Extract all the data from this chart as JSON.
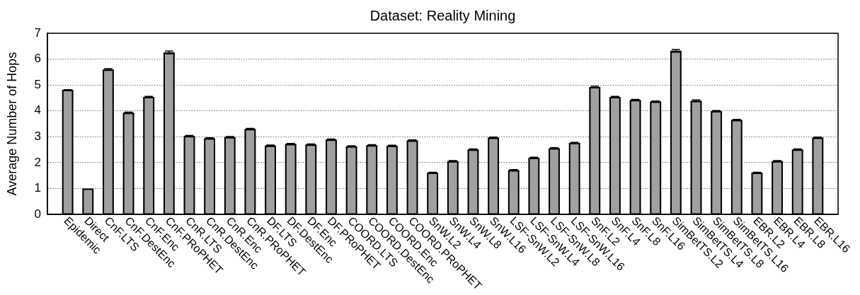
{
  "chart_data": {
    "type": "bar",
    "title": "Dataset: Reality Mining",
    "ylabel": "Average Number of Hops",
    "categories": [
      "Epidemic",
      "Direct",
      "CnF.LTS",
      "CnF.DestEnc",
      "CnF.Enc",
      "CnF.PRoPHET",
      "CnR.LTS",
      "CnR.DestEnc",
      "CnR.Enc",
      "CnR.PRoPHET",
      "DF.LTS",
      "DF.DestEnc",
      "DF.Enc",
      "DF.PRoPHET",
      "COORD.LTS",
      "COORD.DestEnc",
      "COORD.Enc",
      "COORD.PRoPHET",
      "SnW.L2",
      "SnW.L4",
      "SnW.L8",
      "SnW.L16",
      "LSF-SnW.L2",
      "LSF-SnW.L4",
      "LSF-SnW.L8",
      "LSF-SnW.L16",
      "SnF.L2",
      "SnF.L4",
      "SnF.L8",
      "SnF.L16",
      "SimBetTS.L2",
      "SimBetTS.L4",
      "SimBetTS.L8",
      "SimBetTS.L16",
      "EBR.L2",
      "EBR.L4",
      "EBR.L8",
      "EBR.L16"
    ],
    "values": [
      4.81,
      1,
      5.6,
      3.93,
      4.54,
      6.26,
      3.03,
      2.94,
      2.99,
      3.3,
      2.66,
      2.72,
      2.7,
      2.89,
      2.63,
      2.67,
      2.65,
      2.86,
      1.61,
      2.06,
      2.51,
      2.97,
      1.71,
      2.19,
      2.56,
      2.76,
      4.92,
      4.54,
      4.42,
      4.36,
      6.32,
      4.39,
      3.99,
      3.65,
      1.61,
      2.06,
      2.51,
      2.97
    ],
    "errors": [
      0.01,
      null,
      0.03,
      0.02,
      0.02,
      0.05,
      0.02,
      0.02,
      0.02,
      0.02,
      0.02,
      0.02,
      0.02,
      0.02,
      0.02,
      0.02,
      0.02,
      0.02,
      0.02,
      0.02,
      0.02,
      0.02,
      0.02,
      0.02,
      0.02,
      0.02,
      0.03,
      0.02,
      0.02,
      0.02,
      0.05,
      0.03,
      0.02,
      0.02,
      0.02,
      0.02,
      0.02,
      0.02
    ],
    "color": "#a0a0a0",
    "ylim": [
      0,
      7
    ],
    "yticks": [
      0,
      1,
      2,
      3,
      4,
      5,
      6,
      7
    ],
    "grid": "y"
  }
}
